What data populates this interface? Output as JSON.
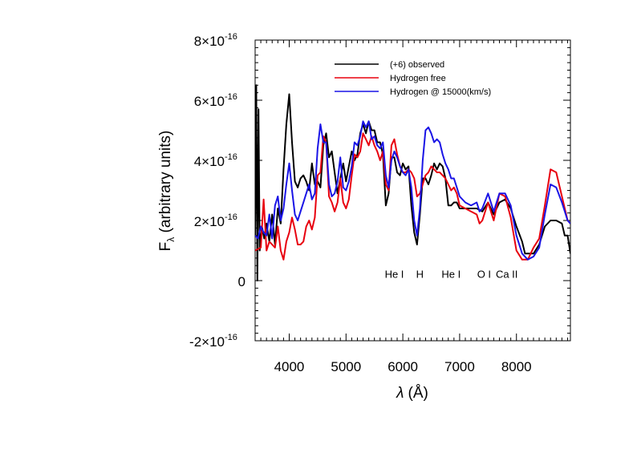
{
  "chart_data": {
    "type": "line",
    "title": "",
    "xlabel_symbol": "λ",
    "xlabel_unit": "(Å)",
    "ylabel_main": "F",
    "ylabel_sub": "λ",
    "ylabel_rest": " (arbitrary units)",
    "xlim": [
      3400,
      8950
    ],
    "ylim": [
      -2e-16,
      8e-16
    ],
    "x_ticks": [
      4000,
      5000,
      6000,
      7000,
      8000
    ],
    "x_tick_labels": [
      "4000",
      "5000",
      "6000",
      "7000",
      "8000"
    ],
    "y_ticks": [
      -2e-16,
      0,
      2e-16,
      4e-16,
      6e-16,
      8e-16
    ],
    "y_tick_labels": [
      {
        "mant": "-2×10",
        "exp": "-16"
      },
      {
        "mant": "0",
        "exp": ""
      },
      {
        "mant": "2×10",
        "exp": "-16"
      },
      {
        "mant": "4×10",
        "exp": "-16"
      },
      {
        "mant": "6×10",
        "exp": "-16"
      },
      {
        "mant": "8×10",
        "exp": "-16"
      }
    ],
    "legend_position": "top-right",
    "series": [
      {
        "name": "(+6) observed",
        "color": "#000000",
        "points": [
          [
            3400,
            1.5e-16
          ],
          [
            3420,
            6.5e-16
          ],
          [
            3440,
            0.0
          ],
          [
            3460,
            5.7e-16
          ],
          [
            3480,
            1e-16
          ],
          [
            3520,
            1.8e-16
          ],
          [
            3560,
            1.4e-16
          ],
          [
            3600,
            1.9e-16
          ],
          [
            3650,
            1.3e-16
          ],
          [
            3700,
            2.2e-16
          ],
          [
            3750,
            1.2e-16
          ],
          [
            3800,
            2.4e-16
          ],
          [
            3850,
            1.9e-16
          ],
          [
            3900,
            3.7e-16
          ],
          [
            3950,
            5.2e-16
          ],
          [
            4000,
            6.2e-16
          ],
          [
            4050,
            4.6e-16
          ],
          [
            4100,
            3.3e-16
          ],
          [
            4150,
            3.1e-16
          ],
          [
            4200,
            3.4e-16
          ],
          [
            4250,
            3.5e-16
          ],
          [
            4300,
            3.3e-16
          ],
          [
            4350,
            3e-16
          ],
          [
            4400,
            3.9e-16
          ],
          [
            4450,
            3.2e-16
          ],
          [
            4500,
            3.3e-16
          ],
          [
            4550,
            3.1e-16
          ],
          [
            4600,
            4.5e-16
          ],
          [
            4650,
            4.9e-16
          ],
          [
            4700,
            4.1e-16
          ],
          [
            4750,
            4.3e-16
          ],
          [
            4800,
            3.6e-16
          ],
          [
            4850,
            2.9e-16
          ],
          [
            4900,
            3.4e-16
          ],
          [
            4950,
            3.9e-16
          ],
          [
            5000,
            3.3e-16
          ],
          [
            5050,
            3.8e-16
          ],
          [
            5100,
            4.3e-16
          ],
          [
            5150,
            4e-16
          ],
          [
            5200,
            4.2e-16
          ],
          [
            5250,
            4.9e-16
          ],
          [
            5300,
            5.2e-16
          ],
          [
            5350,
            4.9e-16
          ],
          [
            5400,
            5.3e-16
          ],
          [
            5450,
            5e-16
          ],
          [
            5500,
            5e-16
          ],
          [
            5550,
            4.6e-16
          ],
          [
            5600,
            4.6e-16
          ],
          [
            5650,
            4.2e-16
          ],
          [
            5700,
            2.5e-16
          ],
          [
            5750,
            2.9e-16
          ],
          [
            5800,
            4.1e-16
          ],
          [
            5850,
            4.1e-16
          ],
          [
            5900,
            3.6e-16
          ],
          [
            5950,
            3.5e-16
          ],
          [
            6000,
            3.9e-16
          ],
          [
            6050,
            3.7e-16
          ],
          [
            6100,
            3.8e-16
          ],
          [
            6150,
            2.5e-16
          ],
          [
            6200,
            1.6e-16
          ],
          [
            6250,
            1.2e-16
          ],
          [
            6300,
            2.2e-16
          ],
          [
            6350,
            3.4e-16
          ],
          [
            6400,
            3.4e-16
          ],
          [
            6450,
            3.2e-16
          ],
          [
            6500,
            3.5e-16
          ],
          [
            6550,
            3.9e-16
          ],
          [
            6600,
            3.7e-16
          ],
          [
            6650,
            3.9e-16
          ],
          [
            6700,
            3.8e-16
          ],
          [
            6750,
            3.4e-16
          ],
          [
            6800,
            2.5e-16
          ],
          [
            6850,
            2.5e-16
          ],
          [
            6900,
            2.6e-16
          ],
          [
            6950,
            2.6e-16
          ],
          [
            7000,
            2.4e-16
          ],
          [
            7100,
            2.4e-16
          ],
          [
            7200,
            2.4e-16
          ],
          [
            7300,
            2.4e-16
          ],
          [
            7400,
            2.3e-16
          ],
          [
            7500,
            2.6e-16
          ],
          [
            7600,
            2.2e-16
          ],
          [
            7700,
            2.6e-16
          ],
          [
            7800,
            2.7e-16
          ],
          [
            7900,
            2.4e-16
          ],
          [
            8000,
            1.8e-16
          ],
          [
            8100,
            1.3e-16
          ],
          [
            8150,
            9e-17
          ],
          [
            8200,
            9e-17
          ],
          [
            8300,
            9e-17
          ],
          [
            8400,
            1.2e-16
          ],
          [
            8500,
            1.8e-16
          ],
          [
            8600,
            2e-16
          ],
          [
            8700,
            2e-16
          ],
          [
            8800,
            1.9e-16
          ],
          [
            8850,
            1.5e-16
          ],
          [
            8900,
            1.5e-16
          ],
          [
            8950,
            9e-17
          ]
        ]
      },
      {
        "name": "Hydrogen free",
        "color": "#e8000e",
        "points": [
          [
            3400,
            1e-16
          ],
          [
            3500,
            1.1e-16
          ],
          [
            3550,
            2.7e-16
          ],
          [
            3600,
            1e-16
          ],
          [
            3650,
            1.3e-16
          ],
          [
            3700,
            1.2e-16
          ],
          [
            3750,
            1.1e-16
          ],
          [
            3800,
            1.8e-16
          ],
          [
            3850,
            1e-16
          ],
          [
            3900,
            7e-17
          ],
          [
            3950,
            1.3e-16
          ],
          [
            4000,
            1.6e-16
          ],
          [
            4050,
            2.1e-16
          ],
          [
            4100,
            1.7e-16
          ],
          [
            4150,
            1.2e-16
          ],
          [
            4200,
            1.2e-16
          ],
          [
            4250,
            1.3e-16
          ],
          [
            4300,
            1.8e-16
          ],
          [
            4350,
            2e-16
          ],
          [
            4400,
            1.7e-16
          ],
          [
            4450,
            2.1e-16
          ],
          [
            4500,
            3.5e-16
          ],
          [
            4550,
            3.6e-16
          ],
          [
            4600,
            4.8e-16
          ],
          [
            4650,
            4.6e-16
          ],
          [
            4700,
            2.8e-16
          ],
          [
            4750,
            2.6e-16
          ],
          [
            4800,
            2.3e-16
          ],
          [
            4850,
            2.6e-16
          ],
          [
            4900,
            3.4e-16
          ],
          [
            4950,
            2.6e-16
          ],
          [
            5000,
            2.4e-16
          ],
          [
            5050,
            2.7e-16
          ],
          [
            5100,
            3.5e-16
          ],
          [
            5150,
            4.2e-16
          ],
          [
            5200,
            4.1e-16
          ],
          [
            5250,
            4.3e-16
          ],
          [
            5300,
            4.9e-16
          ],
          [
            5350,
            4.7e-16
          ],
          [
            5400,
            4.5e-16
          ],
          [
            5450,
            4.8e-16
          ],
          [
            5500,
            4.5e-16
          ],
          [
            5550,
            4.3e-16
          ],
          [
            5600,
            4e-16
          ],
          [
            5650,
            4.3e-16
          ],
          [
            5700,
            3.2e-16
          ],
          [
            5750,
            3e-16
          ],
          [
            5800,
            4.5e-16
          ],
          [
            5850,
            4.7e-16
          ],
          [
            5900,
            4.2e-16
          ],
          [
            5950,
            3.8e-16
          ],
          [
            6000,
            3.6e-16
          ],
          [
            6050,
            3.6e-16
          ],
          [
            6100,
            3.7e-16
          ],
          [
            6150,
            3.6e-16
          ],
          [
            6200,
            3.4e-16
          ],
          [
            6250,
            2.8e-16
          ],
          [
            6300,
            2.9e-16
          ],
          [
            6350,
            3.2e-16
          ],
          [
            6400,
            3.5e-16
          ],
          [
            6450,
            3.6e-16
          ],
          [
            6500,
            3.8e-16
          ],
          [
            6550,
            3.7e-16
          ],
          [
            6600,
            3.6e-16
          ],
          [
            6650,
            3.6e-16
          ],
          [
            6700,
            3.5e-16
          ],
          [
            6750,
            3.4e-16
          ],
          [
            6800,
            3.2e-16
          ],
          [
            6850,
            3e-16
          ],
          [
            6900,
            3.1e-16
          ],
          [
            6950,
            2.9e-16
          ],
          [
            7000,
            2.5e-16
          ],
          [
            7100,
            2.4e-16
          ],
          [
            7200,
            2.3e-16
          ],
          [
            7300,
            2.2e-16
          ],
          [
            7350,
            1.9e-16
          ],
          [
            7400,
            2e-16
          ],
          [
            7500,
            2.6e-16
          ],
          [
            7600,
            2e-16
          ],
          [
            7700,
            2.9e-16
          ],
          [
            7800,
            2.8e-16
          ],
          [
            7900,
            2.1e-16
          ],
          [
            8000,
            1e-16
          ],
          [
            8100,
            7e-17
          ],
          [
            8200,
            7e-17
          ],
          [
            8300,
            1.1e-16
          ],
          [
            8400,
            1.4e-16
          ],
          [
            8500,
            2.5e-16
          ],
          [
            8600,
            3.7e-16
          ],
          [
            8700,
            3.6e-16
          ],
          [
            8800,
            2.8e-16
          ],
          [
            8900,
            2e-16
          ],
          [
            8950,
            1.9e-16
          ]
        ]
      },
      {
        "name": "Hydrogen @ 15000(km/s)",
        "color": "#1a14e6",
        "points": [
          [
            3400,
            1.5e-16
          ],
          [
            3450,
            1.4e-16
          ],
          [
            3500,
            1.8e-16
          ],
          [
            3550,
            1.6e-16
          ],
          [
            3600,
            1.5e-16
          ],
          [
            3650,
            2.2e-16
          ],
          [
            3700,
            1.4e-16
          ],
          [
            3750,
            2.5e-16
          ],
          [
            3800,
            2.8e-16
          ],
          [
            3850,
            2e-16
          ],
          [
            3900,
            2.4e-16
          ],
          [
            3950,
            3.2e-16
          ],
          [
            4000,
            3.9e-16
          ],
          [
            4050,
            3e-16
          ],
          [
            4100,
            2.2e-16
          ],
          [
            4150,
            2e-16
          ],
          [
            4200,
            2.3e-16
          ],
          [
            4250,
            2.6e-16
          ],
          [
            4300,
            2.9e-16
          ],
          [
            4350,
            3.2e-16
          ],
          [
            4400,
            2.7e-16
          ],
          [
            4450,
            2.9e-16
          ],
          [
            4500,
            4.4e-16
          ],
          [
            4550,
            5.2e-16
          ],
          [
            4600,
            4.6e-16
          ],
          [
            4650,
            4.6e-16
          ],
          [
            4700,
            3.2e-16
          ],
          [
            4750,
            2.8e-16
          ],
          [
            4800,
            2.9e-16
          ],
          [
            4850,
            3.3e-16
          ],
          [
            4900,
            4.1e-16
          ],
          [
            4950,
            3.1e-16
          ],
          [
            5000,
            3e-16
          ],
          [
            5050,
            3.3e-16
          ],
          [
            5100,
            3.8e-16
          ],
          [
            5150,
            4.6e-16
          ],
          [
            5200,
            4.5e-16
          ],
          [
            5250,
            4.8e-16
          ],
          [
            5300,
            5.3e-16
          ],
          [
            5350,
            5.1e-16
          ],
          [
            5400,
            5.3e-16
          ],
          [
            5450,
            4.7e-16
          ],
          [
            5500,
            4.8e-16
          ],
          [
            5550,
            4.5e-16
          ],
          [
            5600,
            4.4e-16
          ],
          [
            5650,
            4.6e-16
          ],
          [
            5700,
            3.5e-16
          ],
          [
            5750,
            3.1e-16
          ],
          [
            5800,
            4e-16
          ],
          [
            5850,
            4.3e-16
          ],
          [
            5900,
            4.1e-16
          ],
          [
            5950,
            3.8e-16
          ],
          [
            6000,
            3.6e-16
          ],
          [
            6050,
            3.5e-16
          ],
          [
            6100,
            3.7e-16
          ],
          [
            6150,
            3.1e-16
          ],
          [
            6200,
            2e-16
          ],
          [
            6250,
            1.5e-16
          ],
          [
            6300,
            2.4e-16
          ],
          [
            6350,
            4e-16
          ],
          [
            6400,
            5e-16
          ],
          [
            6450,
            5.1e-16
          ],
          [
            6500,
            4.9e-16
          ],
          [
            6550,
            4.6e-16
          ],
          [
            6600,
            4.7e-16
          ],
          [
            6650,
            4.6e-16
          ],
          [
            6700,
            4.2e-16
          ],
          [
            6750,
            3.9e-16
          ],
          [
            6800,
            3.7e-16
          ],
          [
            6850,
            3.4e-16
          ],
          [
            6900,
            3.4e-16
          ],
          [
            6950,
            3.1e-16
          ],
          [
            7000,
            2.8e-16
          ],
          [
            7100,
            2.6e-16
          ],
          [
            7200,
            2.5e-16
          ],
          [
            7300,
            2.6e-16
          ],
          [
            7350,
            2.3e-16
          ],
          [
            7400,
            2.4e-16
          ],
          [
            7500,
            2.9e-16
          ],
          [
            7600,
            2.3e-16
          ],
          [
            7700,
            2.9e-16
          ],
          [
            7800,
            2.9e-16
          ],
          [
            7900,
            2.5e-16
          ],
          [
            8000,
            1.5e-16
          ],
          [
            8100,
            9e-17
          ],
          [
            8200,
            7e-17
          ],
          [
            8300,
            8e-17
          ],
          [
            8400,
            1.1e-16
          ],
          [
            8500,
            2.2e-16
          ],
          [
            8600,
            3.2e-16
          ],
          [
            8700,
            3.1e-16
          ],
          [
            8800,
            2.6e-16
          ],
          [
            8900,
            2e-16
          ],
          [
            8950,
            1.9e-16
          ]
        ]
      }
    ],
    "annotations": [
      {
        "text": "He I",
        "x": 5850,
        "y": 1e-17
      },
      {
        "text": "H",
        "x": 6300,
        "y": 1e-17
      },
      {
        "text": "He I",
        "x": 6850,
        "y": 1e-17
      },
      {
        "text": "O I",
        "x": 7430,
        "y": 1e-17
      },
      {
        "text": "Ca II",
        "x": 7830,
        "y": 1e-17
      }
    ]
  }
}
